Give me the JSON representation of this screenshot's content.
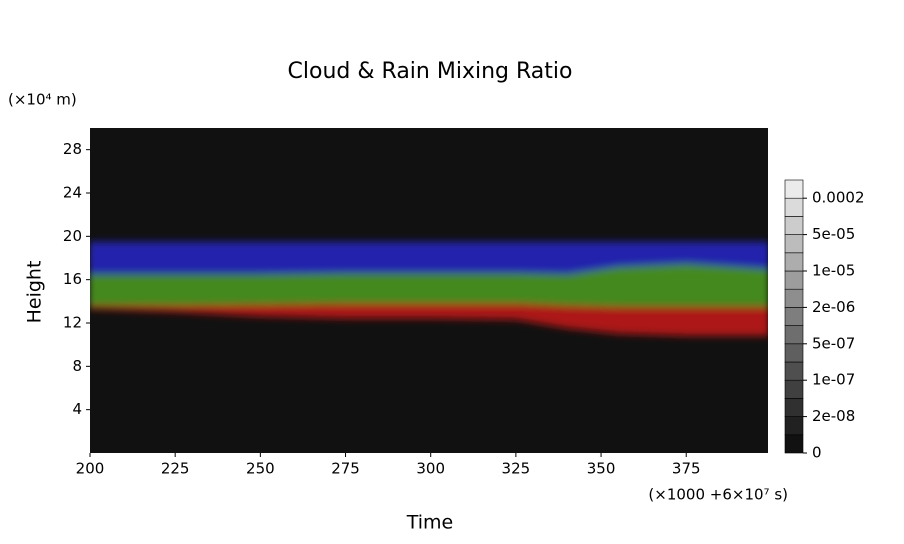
{
  "chart_data": {
    "type": "band-area",
    "title": "Cloud & Rain Mixing Ratio",
    "ylabel": "Height",
    "xlabel": "Time",
    "y_unit": "(×10⁴ m)",
    "x_unit": "(×1000 +6×10⁷ s)",
    "xlim": [
      200,
      399
    ],
    "ylim": [
      0,
      30
    ],
    "xticks": [
      200,
      225,
      250,
      275,
      300,
      325,
      350,
      375
    ],
    "yticks": [
      4,
      8,
      12,
      16,
      20,
      24,
      28
    ],
    "x": [
      200,
      225,
      250,
      275,
      300,
      325,
      340,
      355,
      375,
      399
    ],
    "series": [
      {
        "color": "#2424c8",
        "low": [
          16.5,
          16.5,
          16.5,
          16.5,
          16.5,
          16.5,
          16.5,
          16.8,
          17,
          16.8
        ],
        "high": [
          19.5,
          19.5,
          19.5,
          19.5,
          19.5,
          19.5,
          19.5,
          19.5,
          19.5,
          19.5
        ]
      },
      {
        "color": "#4c9e1e",
        "low": [
          13.6,
          13.6,
          13.7,
          13.8,
          13.8,
          13.8,
          13.6,
          13.5,
          13.5,
          13.5
        ],
        "high": [
          16.5,
          16.5,
          16.5,
          16.6,
          16.6,
          16.6,
          16.5,
          17.2,
          17.5,
          17
        ]
      },
      {
        "color": "#c81818",
        "low": [
          13.3,
          13,
          12.6,
          12.4,
          12.4,
          12.3,
          11.5,
          11,
          10.8,
          10.8
        ],
        "high": [
          13.6,
          13.6,
          13.7,
          13.8,
          13.8,
          13.8,
          13.6,
          13.5,
          13.5,
          13.5
        ]
      }
    ],
    "colorbar": {
      "ticks": [
        0,
        {
          "value": 2e-08,
          "label": "2e-08"
        },
        {
          "value": 1e-07,
          "label": "1e-07"
        },
        {
          "value": 5e-07,
          "label": "5e-07"
        },
        {
          "value": 2e-06,
          "label": "2e-06"
        },
        {
          "value": 1e-05,
          "label": "1e-05"
        },
        {
          "value": 5e-05,
          "label": "5e-05"
        },
        0.0002
      ]
    }
  }
}
